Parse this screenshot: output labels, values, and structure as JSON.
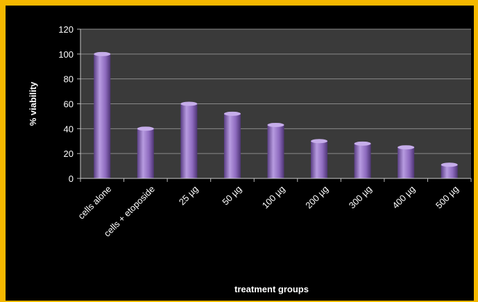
{
  "chart_data": {
    "type": "bar",
    "title": "",
    "xlabel": "treatment groups",
    "ylabel": "% viability",
    "categories": [
      "cells alone",
      "cells + etoposide",
      "25 µg",
      "50 µg",
      "100 µg",
      "200 µg",
      "300 µg",
      "400 µg",
      "500 µg"
    ],
    "values": [
      100,
      40,
      60,
      52,
      43,
      30,
      28,
      25,
      11
    ],
    "ylim": [
      0,
      120
    ],
    "yticks": [
      0,
      20,
      40,
      60,
      80,
      100,
      120
    ],
    "grid": true,
    "legend": "none",
    "colors": {
      "frame": "#f5b800",
      "background": "#000000",
      "plot_area": "#3a3a3a",
      "bar": "#8e6bbf",
      "grid": "#8a8a8a",
      "text": "#ffffff"
    }
  }
}
